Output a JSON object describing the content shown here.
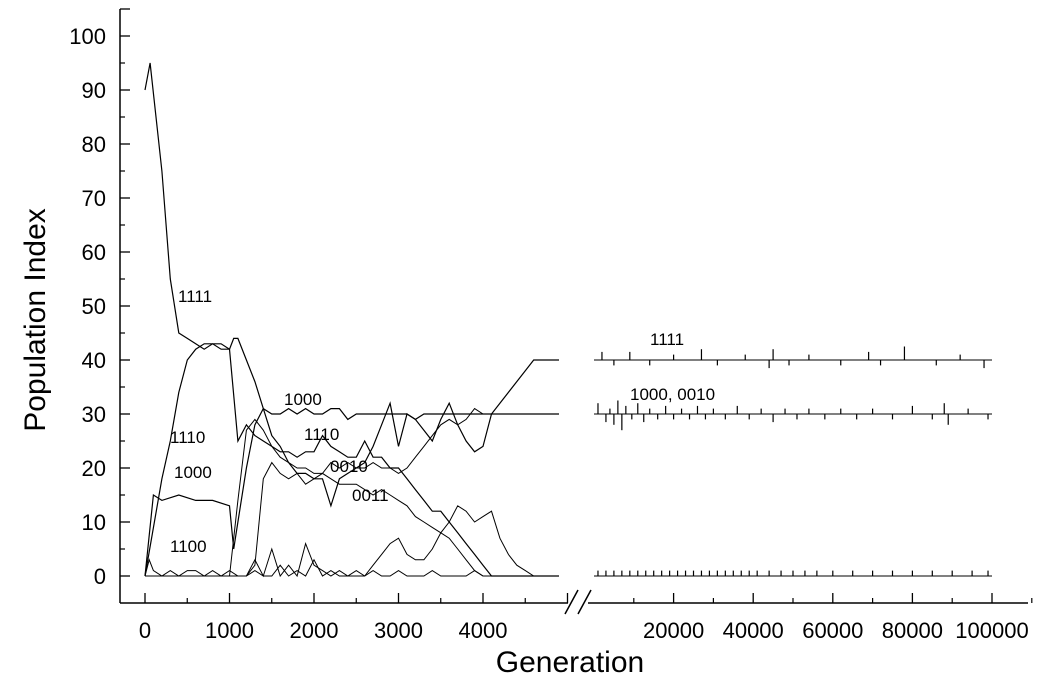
{
  "chart_data": {
    "type": "line",
    "title": "",
    "xlabel": "Generation",
    "ylabel": "Population Index",
    "ylim": [
      0,
      100
    ],
    "yticks": [
      0,
      10,
      20,
      30,
      40,
      50,
      60,
      70,
      80,
      90,
      100
    ],
    "grid": false,
    "legend": "none",
    "x_axis_break": true,
    "x_segments": [
      {
        "range": [
          0,
          5000
        ],
        "ticks": [
          "0",
          "1000",
          "2000",
          "3000",
          "4000"
        ]
      },
      {
        "range": [
          0,
          100000
        ],
        "ticks": [
          "20000",
          "40000",
          "60000",
          "80000",
          "100000"
        ]
      }
    ],
    "annotations": [
      "1111",
      "1110",
      "1000",
      "1100",
      "1000",
      "1110",
      "0010",
      "0011",
      "1111",
      "1000, 0010"
    ],
    "series": [
      {
        "label": "1111",
        "segment": 1,
        "x": [
          0,
          60,
          200,
          300,
          400,
          500,
          600,
          700,
          800,
          900,
          1000,
          1050,
          1100,
          1200,
          1300,
          1400,
          1500,
          1600,
          1700,
          1800,
          1900,
          2000,
          2100,
          2200,
          2300,
          2400,
          2500,
          2600,
          2700,
          2800,
          2900,
          3000,
          3100,
          3200,
          3300,
          3400,
          3500,
          3600,
          3700,
          3800,
          3900,
          4000,
          4100,
          4200,
          4300,
          4400,
          4500,
          4600,
          4700,
          4800,
          4900
        ],
        "y": [
          90,
          95,
          75,
          55,
          45,
          44,
          43,
          42,
          43,
          43,
          42,
          44,
          44,
          40,
          36,
          31,
          26,
          24,
          21,
          19,
          19,
          18,
          18,
          13,
          18,
          19,
          20,
          21,
          24,
          28,
          32,
          24,
          30,
          29,
          27,
          25,
          29,
          32,
          28,
          25,
          23,
          24,
          30,
          32,
          34,
          36,
          38,
          40,
          40,
          40,
          40
        ]
      },
      {
        "label": "1110",
        "segment": 1,
        "x": [
          0,
          200,
          300,
          400,
          500,
          600,
          700,
          800,
          900,
          1000,
          1100,
          1200,
          1300,
          1400,
          1500,
          1600,
          1700,
          1800,
          1900,
          2000,
          2100,
          2200,
          2300,
          2400,
          2500,
          2600,
          2700,
          2800,
          2900,
          3000,
          3100,
          3200,
          3300,
          3400,
          3500,
          3600,
          3700,
          3800,
          3900,
          4000,
          4100,
          4200,
          4300,
          4400,
          4500,
          4600,
          4700,
          4800,
          4900
        ],
        "y": [
          0,
          18,
          25,
          34,
          40,
          42,
          43,
          43,
          42,
          42,
          25,
          28,
          26,
          25,
          24,
          23,
          23,
          22,
          23,
          23,
          26,
          24,
          23,
          22,
          22,
          25,
          22,
          22,
          20,
          20,
          18,
          16,
          14,
          12,
          12,
          10,
          8,
          6,
          4,
          2,
          0,
          0,
          0,
          0,
          0,
          0,
          0,
          0,
          0
        ]
      },
      {
        "label": "1000",
        "segment": 1,
        "x": [
          0,
          100,
          200,
          400,
          600,
          800,
          1000,
          1050,
          1100,
          1200,
          1300,
          1400,
          1500,
          1600,
          1700,
          1800,
          1900,
          2000,
          2100,
          2200,
          2300,
          2400,
          2500,
          2600,
          2700,
          2800,
          2900,
          3000,
          3100,
          3200,
          3300,
          3400,
          3500,
          3600,
          3700,
          3800,
          3900,
          4000,
          4100,
          4200,
          4300,
          4400,
          4500,
          4600,
          4700,
          4800,
          4900
        ],
        "y": [
          0,
          15,
          14,
          15,
          14,
          14,
          13,
          5,
          10,
          20,
          28,
          31,
          30,
          30,
          31,
          30,
          31,
          30,
          30,
          31,
          31,
          29,
          30,
          30,
          30,
          30,
          30,
          30,
          30,
          29,
          30,
          30,
          30,
          30,
          30,
          30,
          30,
          30,
          30,
          30,
          30,
          30,
          30,
          30,
          30,
          30,
          30
        ]
      },
      {
        "label": "0010",
        "segment": 1,
        "x": [
          0,
          1000,
          1100,
          1200,
          1300,
          1400,
          1500,
          1600,
          1700,
          1800,
          1900,
          2000,
          2100,
          2200,
          2300,
          2400,
          2500,
          2600,
          2700,
          2800,
          2900,
          3000,
          3100,
          3200,
          3300,
          3400,
          3500,
          3600,
          3700,
          3800,
          3900,
          4000,
          4100,
          4200,
          4300,
          4400,
          4500,
          4600,
          4700,
          4800,
          4900
        ],
        "y": [
          0,
          0,
          14,
          27,
          29,
          27,
          24,
          22,
          21,
          20,
          20,
          19,
          19,
          21,
          20,
          21,
          20,
          20,
          21,
          20,
          20,
          19,
          20,
          22,
          24,
          26,
          28,
          29,
          28,
          29,
          31,
          30,
          30,
          30,
          30,
          30,
          30,
          30,
          30,
          30,
          30
        ]
      },
      {
        "label": "0011",
        "segment": 1,
        "x": [
          0,
          1100,
          1200,
          1300,
          1400,
          1500,
          1600,
          1700,
          1800,
          1900,
          2000,
          2100,
          2200,
          2300,
          2400,
          2500,
          2600,
          2700,
          2800,
          2900,
          3000,
          3100,
          3200,
          3300,
          3400,
          3500,
          3600,
          3700,
          3800,
          3900,
          4000,
          4100,
          4200,
          4300,
          4400,
          4500,
          4600,
          4700,
          4800,
          4900
        ],
        "y": [
          0,
          0,
          0,
          2,
          18,
          21,
          19,
          18,
          19,
          17,
          18,
          19,
          18,
          17,
          17,
          17,
          16,
          15,
          16,
          15,
          14,
          13,
          11,
          10,
          9,
          8,
          7,
          5,
          3,
          1,
          0,
          0,
          0,
          0,
          0,
          0,
          0,
          0,
          0,
          0
        ]
      },
      {
        "label": "1100",
        "segment": 1,
        "x": [
          0,
          50,
          100,
          200,
          300,
          400,
          500,
          600,
          700,
          800,
          900,
          1000,
          1100,
          1200,
          1300,
          1400,
          1500,
          1600,
          1700,
          1800,
          1900,
          2000,
          2100,
          2200,
          2300,
          2400,
          2500,
          2600,
          2700,
          2800,
          2900,
          3000,
          3100,
          3200,
          3300,
          3400,
          3500,
          3600,
          3700,
          3800,
          3900,
          4000,
          4100,
          4200,
          4300,
          4400,
          4500,
          4600,
          4700,
          4800,
          4900
        ],
        "y": [
          0,
          3,
          1,
          0,
          1,
          0,
          1,
          1,
          0,
          1,
          0,
          1,
          0,
          0,
          3,
          0,
          5,
          0,
          2,
          0,
          6,
          2,
          1,
          0,
          1,
          0,
          1,
          0,
          2,
          4,
          6,
          7,
          4,
          3,
          3,
          5,
          8,
          10,
          13,
          12,
          10,
          11,
          12,
          7,
          4,
          2,
          1,
          0,
          0,
          0,
          0
        ]
      },
      {
        "label": "",
        "segment": 1,
        "x": [
          0,
          1000,
          1100,
          1200,
          1300,
          1400,
          1500,
          1600,
          1700,
          1800,
          1900,
          2000,
          2100,
          2200,
          2300,
          2400,
          2500,
          2600,
          2700,
          2800,
          2900,
          3000,
          3100,
          3200,
          3300,
          3400,
          3500,
          3600,
          3700,
          3800,
          3900,
          4000,
          4100,
          4200,
          4300,
          4400,
          4500,
          4600,
          4700,
          4800,
          4900
        ],
        "y": [
          0,
          0,
          0,
          0,
          1,
          0,
          0,
          2,
          0,
          1,
          0,
          3,
          0,
          1,
          0,
          0,
          0,
          0,
          1,
          0,
          0,
          1,
          0,
          0,
          0,
          1,
          0,
          0,
          0,
          0,
          1,
          0,
          0,
          0,
          0,
          0,
          0,
          0,
          0,
          0,
          0
        ]
      },
      {
        "label": "1111",
        "segment": 2,
        "x": [
          0,
          100000
        ],
        "y": [
          40,
          40
        ],
        "spikes": [
          [
            2000,
            1.5
          ],
          [
            5000,
            -1
          ],
          [
            9000,
            1.5
          ],
          [
            14000,
            -1
          ],
          [
            20000,
            1
          ],
          [
            27000,
            2
          ],
          [
            31000,
            -1
          ],
          [
            38000,
            1
          ],
          [
            44000,
            -1.5
          ],
          [
            45000,
            2
          ],
          [
            49000,
            -1
          ],
          [
            54000,
            1
          ],
          [
            62000,
            -1
          ],
          [
            69000,
            1.5
          ],
          [
            72000,
            -1
          ],
          [
            78000,
            2.5
          ],
          [
            86000,
            -1
          ],
          [
            92000,
            1
          ],
          [
            98000,
            -1.5
          ]
        ]
      },
      {
        "label": "1000, 0010",
        "segment": 2,
        "x": [
          0,
          100000
        ],
        "y": [
          30,
          30
        ],
        "spikes": [
          [
            1000,
            2
          ],
          [
            3000,
            -1.5
          ],
          [
            4000,
            1
          ],
          [
            5000,
            -2
          ],
          [
            6000,
            2.5
          ],
          [
            7000,
            -3
          ],
          [
            8000,
            1.5
          ],
          [
            9500,
            -1
          ],
          [
            11000,
            2
          ],
          [
            12500,
            -1.5
          ],
          [
            14000,
            1
          ],
          [
            16000,
            -1
          ],
          [
            18000,
            1.5
          ],
          [
            20000,
            -1
          ],
          [
            22000,
            1
          ],
          [
            24000,
            -1
          ],
          [
            26000,
            1.5
          ],
          [
            28000,
            -1
          ],
          [
            30000,
            1
          ],
          [
            33000,
            -1
          ],
          [
            36000,
            1.5
          ],
          [
            39000,
            -1
          ],
          [
            42000,
            1
          ],
          [
            45000,
            -1.5
          ],
          [
            48000,
            1
          ],
          [
            51000,
            -1
          ],
          [
            54000,
            1
          ],
          [
            58000,
            -1
          ],
          [
            62000,
            1
          ],
          [
            66000,
            -1
          ],
          [
            70000,
            1
          ],
          [
            75000,
            -1
          ],
          [
            80000,
            1.5
          ],
          [
            85000,
            -1
          ],
          [
            88000,
            2
          ],
          [
            89000,
            -2
          ],
          [
            94000,
            1
          ],
          [
            99000,
            -1
          ]
        ]
      },
      {
        "label": "",
        "segment": 2,
        "x": [
          0,
          100000
        ],
        "y": [
          0,
          0
        ],
        "spikes": [
          [
            1000,
            1
          ],
          [
            3000,
            1
          ],
          [
            5000,
            1
          ],
          [
            7000,
            1
          ],
          [
            9000,
            1
          ],
          [
            11000,
            1
          ],
          [
            13000,
            1
          ],
          [
            15000,
            1
          ],
          [
            17000,
            1
          ],
          [
            19000,
            1
          ],
          [
            21000,
            1
          ],
          [
            23000,
            1
          ],
          [
            25000,
            1
          ],
          [
            27000,
            1
          ],
          [
            29000,
            1
          ],
          [
            31000,
            1
          ],
          [
            33000,
            1
          ],
          [
            35000,
            1
          ],
          [
            37000,
            1
          ],
          [
            39000,
            1
          ],
          [
            41000,
            1
          ],
          [
            44000,
            1
          ],
          [
            47000,
            1
          ],
          [
            50000,
            1
          ],
          [
            53000,
            1
          ],
          [
            56000,
            1
          ],
          [
            60000,
            1
          ],
          [
            65000,
            1
          ],
          [
            70000,
            1
          ],
          [
            75000,
            1
          ],
          [
            80000,
            1
          ],
          [
            85000,
            1
          ],
          [
            90000,
            1
          ],
          [
            95000,
            1
          ],
          [
            99000,
            1
          ]
        ]
      }
    ]
  }
}
